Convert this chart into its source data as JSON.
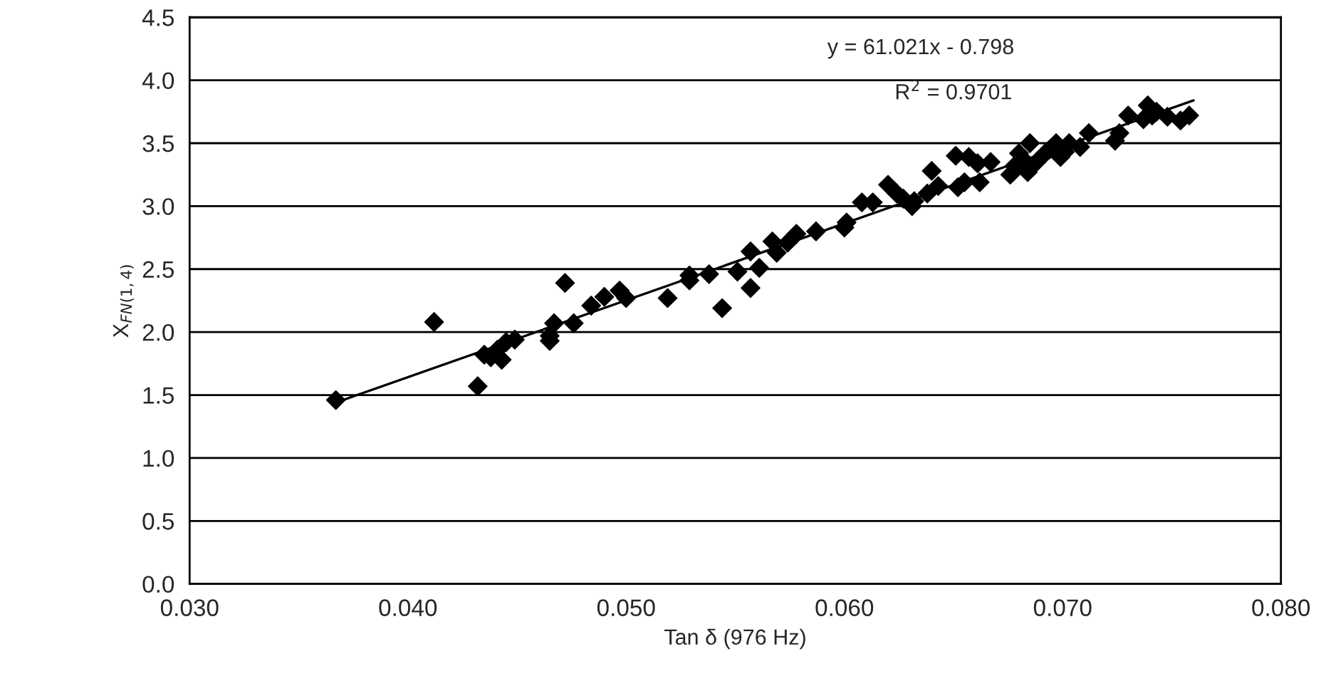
{
  "chart_data": {
    "type": "scatter",
    "xlabel": "Tan δ (976 Hz)",
    "ylabel": "X$_{FN(1,4)}$",
    "annotations": [
      "y = 61.021x - 0.798",
      "R$^{2}$ = 0.9701"
    ],
    "series": [
      {
        "color": "#000000",
        "marker": "diamond",
        "x": [
          0.0367,
          0.0412,
          0.0432,
          0.0435,
          0.0438,
          0.0441,
          0.0443,
          0.0445,
          0.0449,
          0.0465,
          0.0465,
          0.0467,
          0.0472,
          0.0476,
          0.0484,
          0.049,
          0.0497,
          0.05,
          0.0519,
          0.0529,
          0.0529,
          0.0538,
          0.0544,
          0.0551,
          0.0557,
          0.0557,
          0.0561,
          0.0567,
          0.0569,
          0.0574,
          0.0578,
          0.0587,
          0.06,
          0.0601,
          0.0608,
          0.0613,
          0.062,
          0.0624,
          0.0627,
          0.0631,
          0.0632,
          0.0638,
          0.064,
          0.0643,
          0.0651,
          0.0652,
          0.0655,
          0.0657,
          0.0661,
          0.0662,
          0.0667,
          0.0676,
          0.0678,
          0.068,
          0.0682,
          0.0684,
          0.0685,
          0.0688,
          0.0692,
          0.0694,
          0.0697,
          0.0699,
          0.0701,
          0.0703,
          0.0708,
          0.0712,
          0.0724,
          0.0726,
          0.073,
          0.0737,
          0.0739,
          0.0741,
          0.0743,
          0.0748,
          0.0754,
          0.0758
        ],
        "values": [
          1.46,
          2.08,
          1.57,
          1.82,
          1.8,
          1.86,
          1.78,
          1.92,
          1.94,
          1.93,
          1.97,
          2.07,
          2.39,
          2.07,
          2.21,
          2.28,
          2.33,
          2.27,
          2.27,
          2.41,
          2.45,
          2.46,
          2.19,
          2.48,
          2.35,
          2.64,
          2.51,
          2.72,
          2.63,
          2.71,
          2.78,
          2.8,
          2.83,
          2.87,
          3.03,
          3.03,
          3.17,
          3.1,
          3.06,
          3.0,
          3.04,
          3.1,
          3.28,
          3.16,
          3.4,
          3.15,
          3.19,
          3.39,
          3.34,
          3.19,
          3.35,
          3.25,
          3.32,
          3.42,
          3.37,
          3.27,
          3.5,
          3.35,
          3.42,
          3.45,
          3.5,
          3.39,
          3.43,
          3.5,
          3.47,
          3.58,
          3.52,
          3.58,
          3.72,
          3.69,
          3.8,
          3.72,
          3.75,
          3.71,
          3.68,
          3.72
        ]
      },
      {
        "type": "line",
        "color": "#000000",
        "marker": "none",
        "x": [
          0.0367,
          0.076
        ],
        "values": [
          1.44,
          3.84
        ]
      }
    ],
    "xlim": [
      0.03,
      0.08
    ],
    "xticks": [
      {
        "value": 0.03,
        "label": "0.030"
      },
      {
        "value": 0.04,
        "label": "0.040"
      },
      {
        "value": 0.05,
        "label": "0.050"
      },
      {
        "value": 0.06,
        "label": "0.060"
      },
      {
        "value": 0.07,
        "label": "0.070"
      },
      {
        "value": 0.08,
        "label": "0.080"
      }
    ],
    "ylim": [
      0,
      4.5
    ],
    "yticks": [
      {
        "value": 0,
        "label": "0.0"
      },
      {
        "value": 0.5,
        "label": "0.5"
      },
      {
        "value": 1,
        "label": "1.0"
      },
      {
        "value": 1.5,
        "label": "1.5"
      },
      {
        "value": 2,
        "label": "2.0"
      },
      {
        "value": 2.5,
        "label": "2.5"
      },
      {
        "value": 3,
        "label": "3.0"
      },
      {
        "value": 3.5,
        "label": "3.5"
      },
      {
        "value": 4,
        "label": "4.0"
      },
      {
        "value": 4.5,
        "label": "4.5"
      }
    ],
    "grid": "y",
    "legend": false
  }
}
